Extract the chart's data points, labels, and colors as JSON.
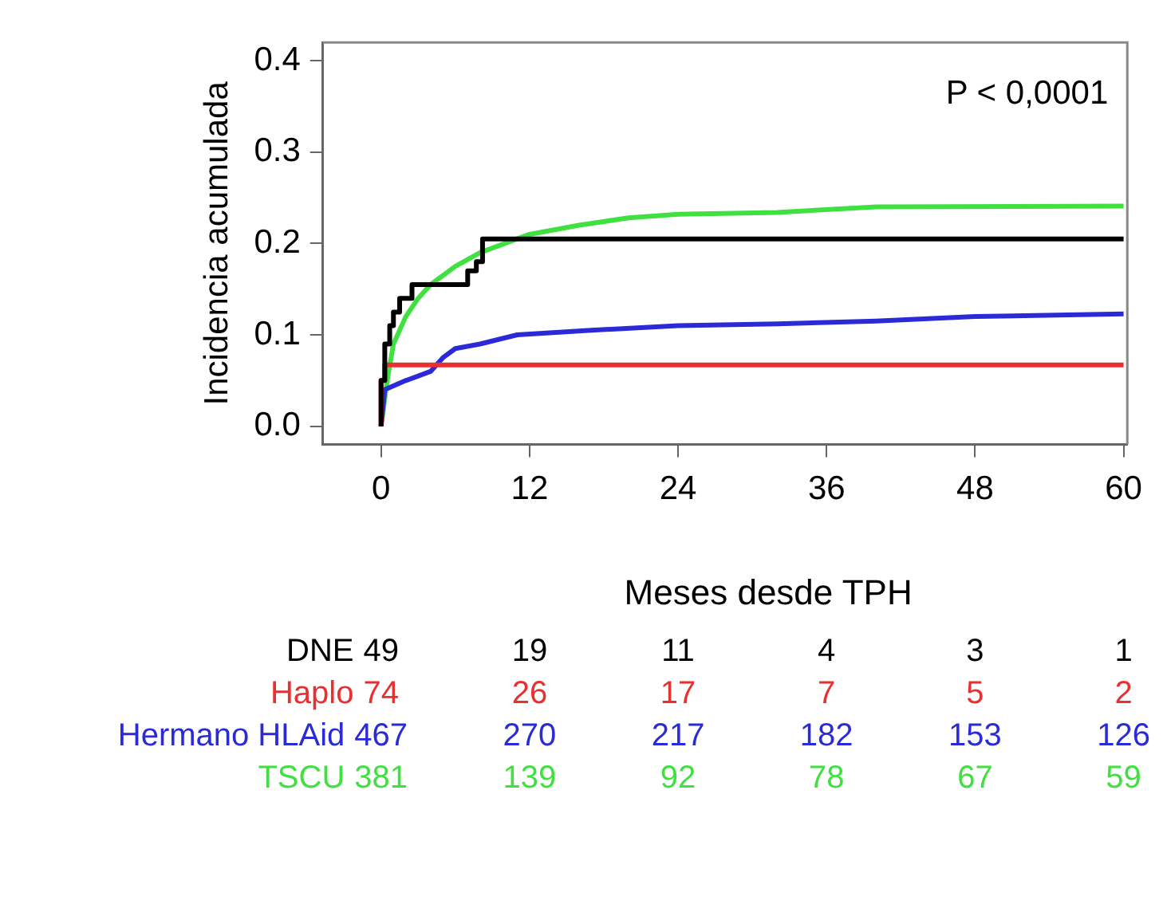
{
  "chart_data": {
    "type": "line",
    "xlabel": "Meses desde TPH",
    "ylabel": "Incidencia acumulada",
    "xlim": [
      -4.7,
      60.3
    ],
    "xticks": [
      0,
      12,
      24,
      36,
      48,
      60
    ],
    "ylim": [
      -0.02,
      0.42
    ],
    "yticks": [
      {
        "value": 0,
        "label": "0.0"
      },
      0.1,
      0.2,
      0.3,
      0.4
    ],
    "grid": false,
    "legend": false,
    "marker": "none",
    "line_style": "solid",
    "series": [
      {
        "name": "DNE",
        "type": "step",
        "color": "#000000",
        "x": [
          0,
          0.3,
          0.7,
          1,
          1.5,
          2.5,
          7,
          7.7,
          8.2,
          8.6,
          60
        ],
        "values": [
          0,
          0.05,
          0.09,
          0.11,
          0.125,
          0.14,
          0.155,
          0.17,
          0.18,
          0.205,
          0.205
        ]
      },
      {
        "name": "Haplo",
        "type": "step",
        "color": "#e83030",
        "x": [
          0,
          0.3,
          3.7,
          60
        ],
        "values": [
          0,
          0.05,
          0.067,
          0.067
        ]
      },
      {
        "name": "Hermano HLAid",
        "type": "line",
        "color": "#2a2ad8",
        "x": [
          0,
          0.3,
          2,
          4,
          5,
          6,
          8,
          11,
          17,
          24,
          32,
          40,
          48,
          60
        ],
        "values": [
          0,
          0.04,
          0.05,
          0.06,
          0.075,
          0.085,
          0.09,
          0.1,
          0.105,
          0.11,
          0.112,
          0.115,
          0.12,
          0.123
        ]
      },
      {
        "name": "TSCU",
        "type": "line",
        "color": "#40e040",
        "x": [
          0,
          0.5,
          1,
          2,
          3,
          4,
          6,
          8,
          10,
          12,
          16,
          20,
          24,
          32,
          40,
          60
        ],
        "values": [
          0,
          0.05,
          0.09,
          0.12,
          0.14,
          0.155,
          0.175,
          0.19,
          0.2,
          0.21,
          0.22,
          0.228,
          0.232,
          0.234,
          0.24,
          0.241
        ]
      }
    ],
    "annotations": [
      "P < 0,0001",
      "49",
      "19",
      "11",
      "4",
      "3",
      "1",
      "74",
      "26",
      "17",
      "7",
      "5",
      "2",
      "467",
      "270",
      "217",
      "182",
      "153",
      "126",
      "381",
      "139",
      "92",
      "78",
      "67",
      "59"
    ]
  }
}
